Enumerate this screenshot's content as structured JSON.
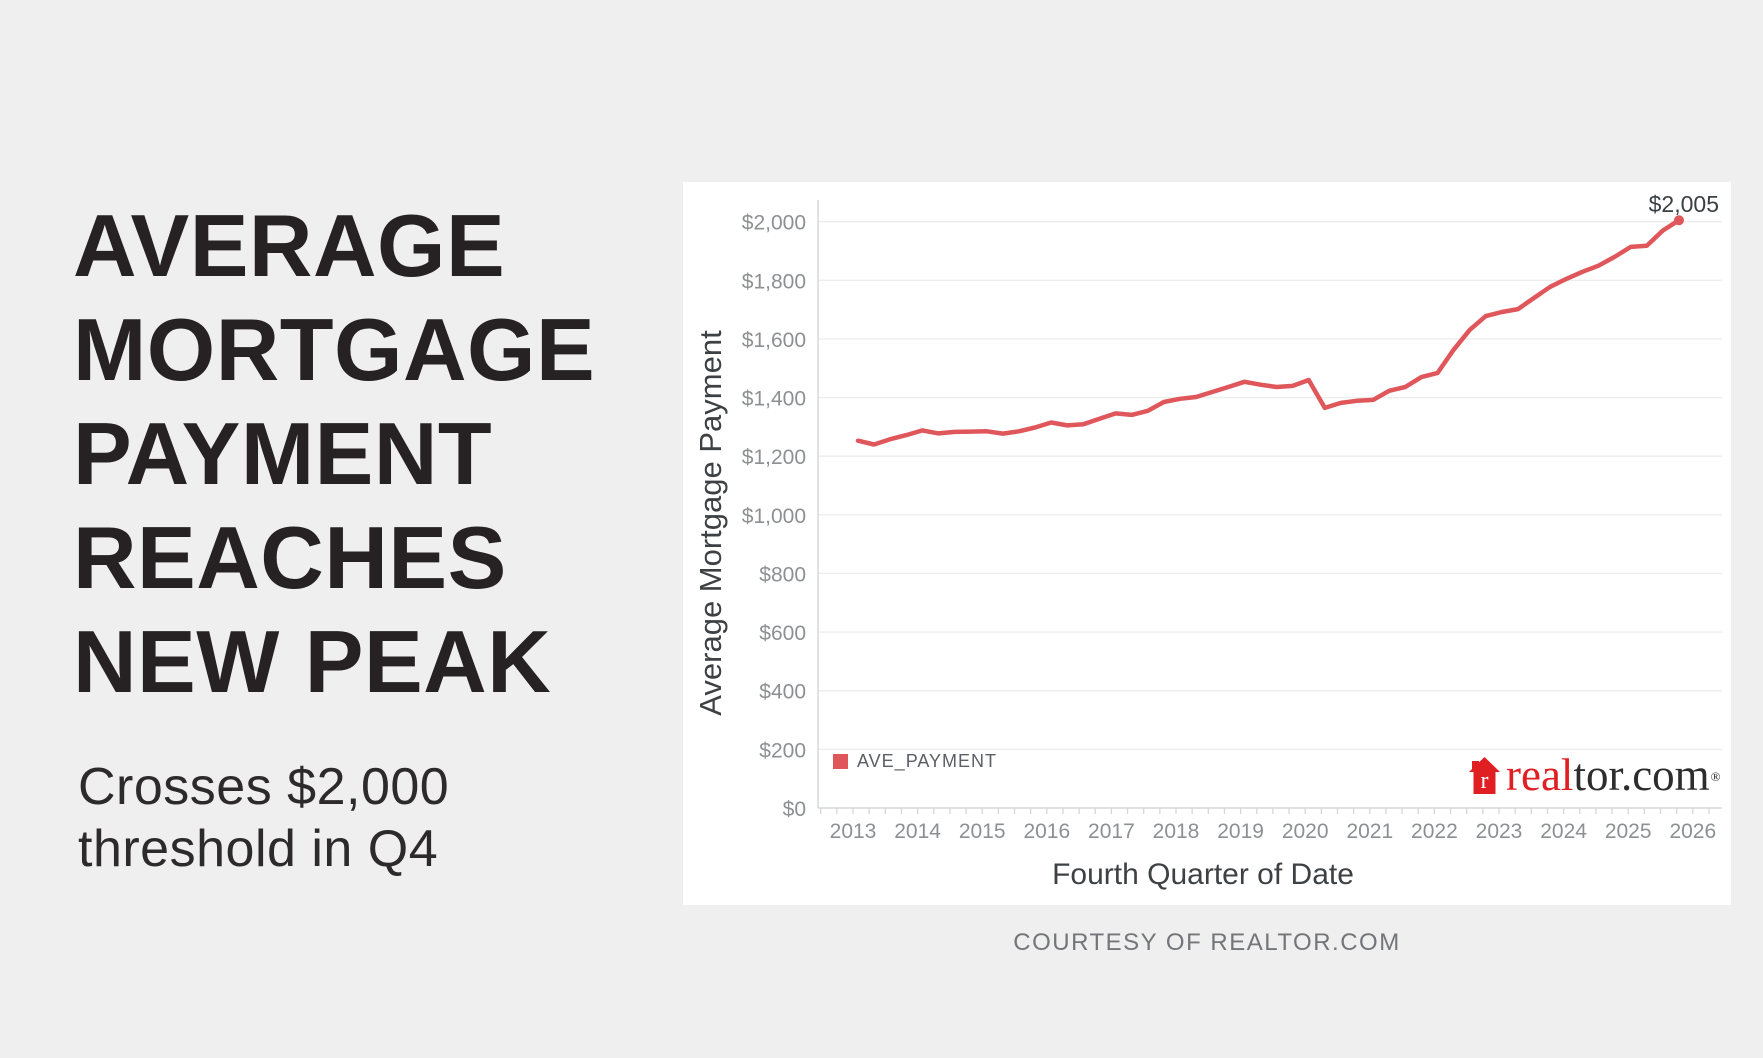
{
  "headline": {
    "lines": [
      "AVERAGE",
      "MORTGAGE",
      "PAYMENT",
      "REACHES",
      "NEW PEAK"
    ]
  },
  "subtitle": {
    "lines": [
      "Crosses $2,000",
      "threshold in Q4"
    ]
  },
  "chart_data": {
    "type": "line",
    "xlabel": "Fourth Quarter of Date",
    "ylabel": "Average Mortgage Payment",
    "grid": "horizontal",
    "legend_position": "bottom-left",
    "annotation": "$2,005",
    "ylim": [
      0,
      2090
    ],
    "xlim_years": [
      2012.47,
      2026.45
    ],
    "y_tick_values": [
      0,
      200,
      400,
      600,
      800,
      1000,
      1200,
      1400,
      1600,
      1800,
      2000
    ],
    "y_tick_labels": [
      "$0",
      "$200",
      "$400",
      "$600",
      "$800",
      "$1,000",
      "$1,200",
      "$1,400",
      "$1,600",
      "$1,800",
      "$2,000"
    ],
    "x_tick_years": [
      2013,
      2014,
      2015,
      2016,
      2017,
      2018,
      2019,
      2020,
      2021,
      2022,
      2023,
      2024,
      2025,
      2026
    ],
    "x_tick_labels": [
      "2013",
      "2014",
      "2015",
      "2016",
      "2017",
      "2018",
      "2019",
      "2020",
      "2021",
      "2022",
      "2023",
      "2024",
      "2025",
      "2026"
    ],
    "series": [
      {
        "name": "AVE_PAYMENT",
        "color": "#e0575b",
        "quarters": [
          "2013 Q1",
          "2013 Q2",
          "2013 Q3",
          "2013 Q4",
          "2014 Q1",
          "2014 Q2",
          "2014 Q3",
          "2014 Q4",
          "2015 Q1",
          "2015 Q2",
          "2015 Q3",
          "2015 Q4",
          "2016 Q1",
          "2016 Q2",
          "2016 Q3",
          "2016 Q4",
          "2017 Q1",
          "2017 Q2",
          "2017 Q3",
          "2017 Q4",
          "2018 Q1",
          "2018 Q2",
          "2018 Q3",
          "2018 Q4",
          "2019 Q1",
          "2019 Q2",
          "2019 Q3",
          "2019 Q4",
          "2020 Q1",
          "2020 Q2",
          "2020 Q3",
          "2020 Q4",
          "2021 Q1",
          "2021 Q2",
          "2021 Q3",
          "2021 Q4",
          "2022 Q1",
          "2022 Q2",
          "2022 Q3",
          "2022 Q4",
          "2023 Q1",
          "2023 Q2",
          "2023 Q3",
          "2023 Q4",
          "2024 Q1",
          "2024 Q2",
          "2024 Q3",
          "2024 Q4",
          "2025 Q1",
          "2025 Q2",
          "2025 Q3",
          "2025 Q4"
        ],
        "values": [
          1253,
          1240,
          1258,
          1272,
          1288,
          1278,
          1283,
          1284,
          1285,
          1277,
          1285,
          1298,
          1315,
          1305,
          1309,
          1328,
          1346,
          1341,
          1355,
          1385,
          1396,
          1402,
          1419,
          1436,
          1454,
          1444,
          1436,
          1440,
          1460,
          1365,
          1382,
          1389,
          1392,
          1423,
          1436,
          1470,
          1484,
          1563,
          1631,
          1678,
          1692,
          1702,
          1740,
          1778,
          1805,
          1829,
          1850,
          1880,
          1914,
          1918,
          1970,
          2005
        ]
      }
    ]
  },
  "branding": {
    "logo_real": "real",
    "logo_tor": "tor.com",
    "logo_reg": "®",
    "house_letter": "r"
  },
  "footer": {
    "courtesy": "COURTESY OF REALTOR.COM"
  },
  "colors": {
    "background": "#f0efef",
    "panel": "#ffffff",
    "line": "#e0575b",
    "logo_red": "#e01f23",
    "headline_text": "#262223",
    "axis_text": "#8d9093",
    "gridline": "#ededee"
  }
}
